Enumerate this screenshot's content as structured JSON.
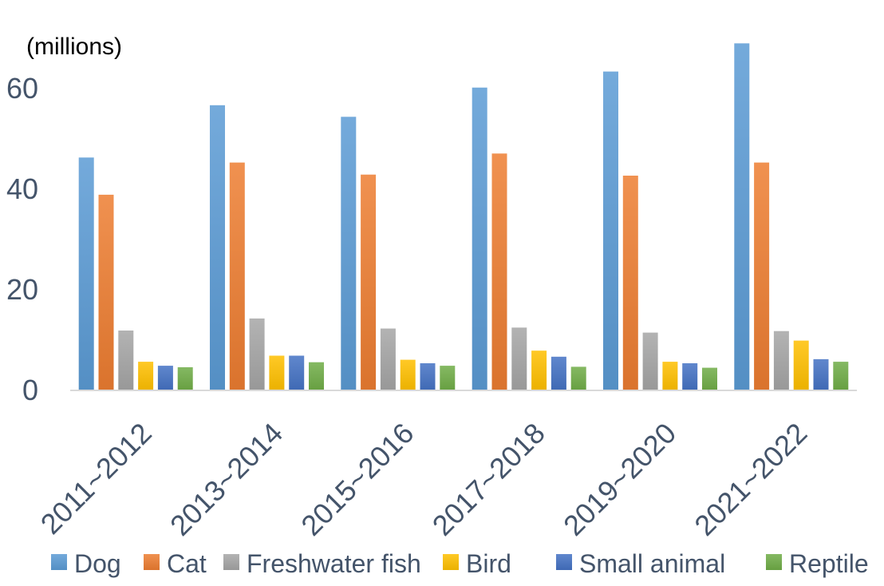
{
  "chart_data": {
    "type": "bar",
    "ylabel": "(millions)",
    "ylim": [
      0,
      70
    ],
    "yticks": [
      0,
      20,
      40,
      60
    ],
    "grid": false,
    "legend_position": "bottom",
    "categories": [
      "2011~2012",
      "2013~2014",
      "2015~2016",
      "2017~2018",
      "2019~2020",
      "2021~2022"
    ],
    "series": [
      {
        "name": "Dog",
        "color": "#5b9bd5",
        "values": [
          46.3,
          56.7,
          54.4,
          60.2,
          63.4,
          69.0
        ]
      },
      {
        "name": "Cat",
        "color": "#ed7d31",
        "values": [
          38.9,
          45.3,
          42.9,
          47.1,
          42.7,
          45.3
        ]
      },
      {
        "name": "Freshwater fish",
        "color": "#a5a5a5",
        "values": [
          11.9,
          14.3,
          12.3,
          12.5,
          11.5,
          11.8
        ]
      },
      {
        "name": "Bird",
        "color": "#ffc000",
        "values": [
          5.7,
          6.9,
          6.1,
          7.9,
          5.7,
          9.9
        ]
      },
      {
        "name": "Small animal",
        "color": "#4472c4",
        "values": [
          4.9,
          6.9,
          5.4,
          6.7,
          5.4,
          6.2
        ]
      },
      {
        "name": "Reptile",
        "color": "#70ad47",
        "values": [
          4.6,
          5.6,
          4.9,
          4.7,
          4.5,
          5.7
        ]
      }
    ]
  }
}
